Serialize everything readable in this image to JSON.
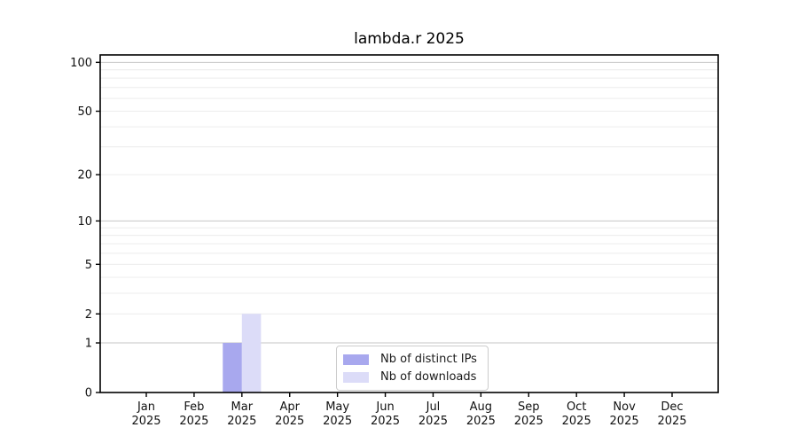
{
  "figure": {
    "background": "#ffffff",
    "frame_color": "#000000",
    "grid_major_color": "#c6c6c6",
    "grid_minor_color": "#ececec",
    "tick_label_color": "#111111"
  },
  "chart_data": {
    "type": "bar",
    "title": "lambda.r 2025",
    "categories": [
      "Jan 2025",
      "Feb 2025",
      "Mar 2025",
      "Apr 2025",
      "May 2025",
      "Jun 2025",
      "Jul 2025",
      "Aug 2025",
      "Sep 2025",
      "Oct 2025",
      "Nov 2025",
      "Dec 2025"
    ],
    "series": [
      {
        "name": "Nb of distinct IPs",
        "color": "#a8a8ee",
        "values": [
          0,
          0,
          1,
          0,
          0,
          0,
          0,
          0,
          0,
          0,
          0,
          0
        ]
      },
      {
        "name": "Nb of downloads",
        "color": "#dcdcf8",
        "values": [
          0,
          0,
          2,
          0,
          0,
          0,
          0,
          0,
          0,
          0,
          0,
          0
        ]
      }
    ],
    "xlabel": "",
    "ylabel": "",
    "yscale": "log1p",
    "ylim": [
      0,
      111
    ],
    "yticks": [
      0,
      1,
      2,
      5,
      10,
      20,
      50,
      100
    ],
    "grid": {
      "axis": "y",
      "major": [
        1,
        10,
        100
      ],
      "minor": [
        2,
        3,
        4,
        5,
        6,
        7,
        8,
        9,
        20,
        30,
        40,
        50,
        60,
        70,
        80,
        90
      ]
    },
    "legend_position": "lower center inside"
  }
}
